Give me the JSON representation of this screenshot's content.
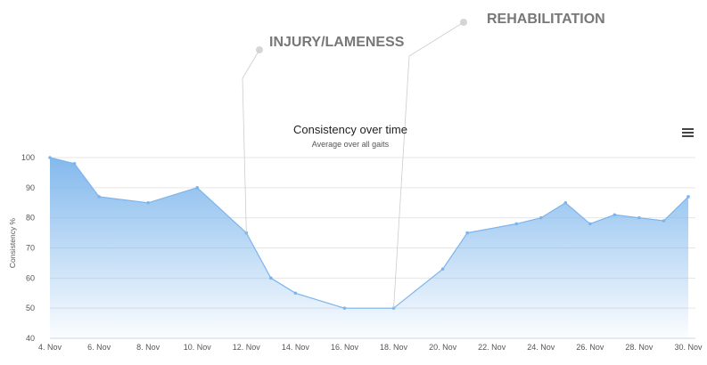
{
  "chart_data": {
    "type": "area",
    "title": "Consistency over time",
    "subtitle": "Average over all gaits",
    "ylabel": "Consistency %",
    "ylim": [
      40,
      100
    ],
    "yticks": [
      40,
      50,
      60,
      70,
      80,
      90,
      100
    ],
    "x": [
      "4. Nov",
      "5. Nov",
      "6. Nov",
      "8. Nov",
      "10. Nov",
      "12. Nov",
      "13. Nov",
      "14. Nov",
      "16. Nov",
      "18. Nov",
      "20. Nov",
      "21. Nov",
      "23. Nov",
      "24. Nov",
      "25. Nov",
      "26. Nov",
      "27. Nov",
      "28. Nov",
      "29. Nov",
      "30. Nov"
    ],
    "x_day": [
      4,
      5,
      6,
      8,
      10,
      12,
      13,
      14,
      16,
      18,
      20,
      21,
      23,
      24,
      25,
      26,
      27,
      28,
      29,
      30
    ],
    "values": [
      100,
      98,
      87,
      85,
      90,
      75,
      60,
      55,
      50,
      50,
      63,
      75,
      78,
      80,
      85,
      78,
      81,
      80,
      79,
      87
    ],
    "xtick_labels": [
      "4. Nov",
      "6. Nov",
      "8. Nov",
      "10. Nov",
      "12. Nov",
      "14. Nov",
      "16. Nov",
      "18. Nov",
      "20. Nov",
      "22. Nov",
      "24. Nov",
      "26. Nov",
      "28. Nov",
      "30. Nov"
    ],
    "xtick_days": [
      4,
      6,
      8,
      10,
      12,
      14,
      16,
      18,
      20,
      22,
      24,
      26,
      28,
      30
    ],
    "color": "#7cb5ec",
    "grid": true,
    "annotations": [
      {
        "label": "INJURY/LAMENESS",
        "day": 12,
        "value": 75
      },
      {
        "label": "REHABILITATION",
        "day": 18,
        "value": 50
      }
    ]
  },
  "menu": {
    "icon": "hamburger-menu-icon"
  }
}
